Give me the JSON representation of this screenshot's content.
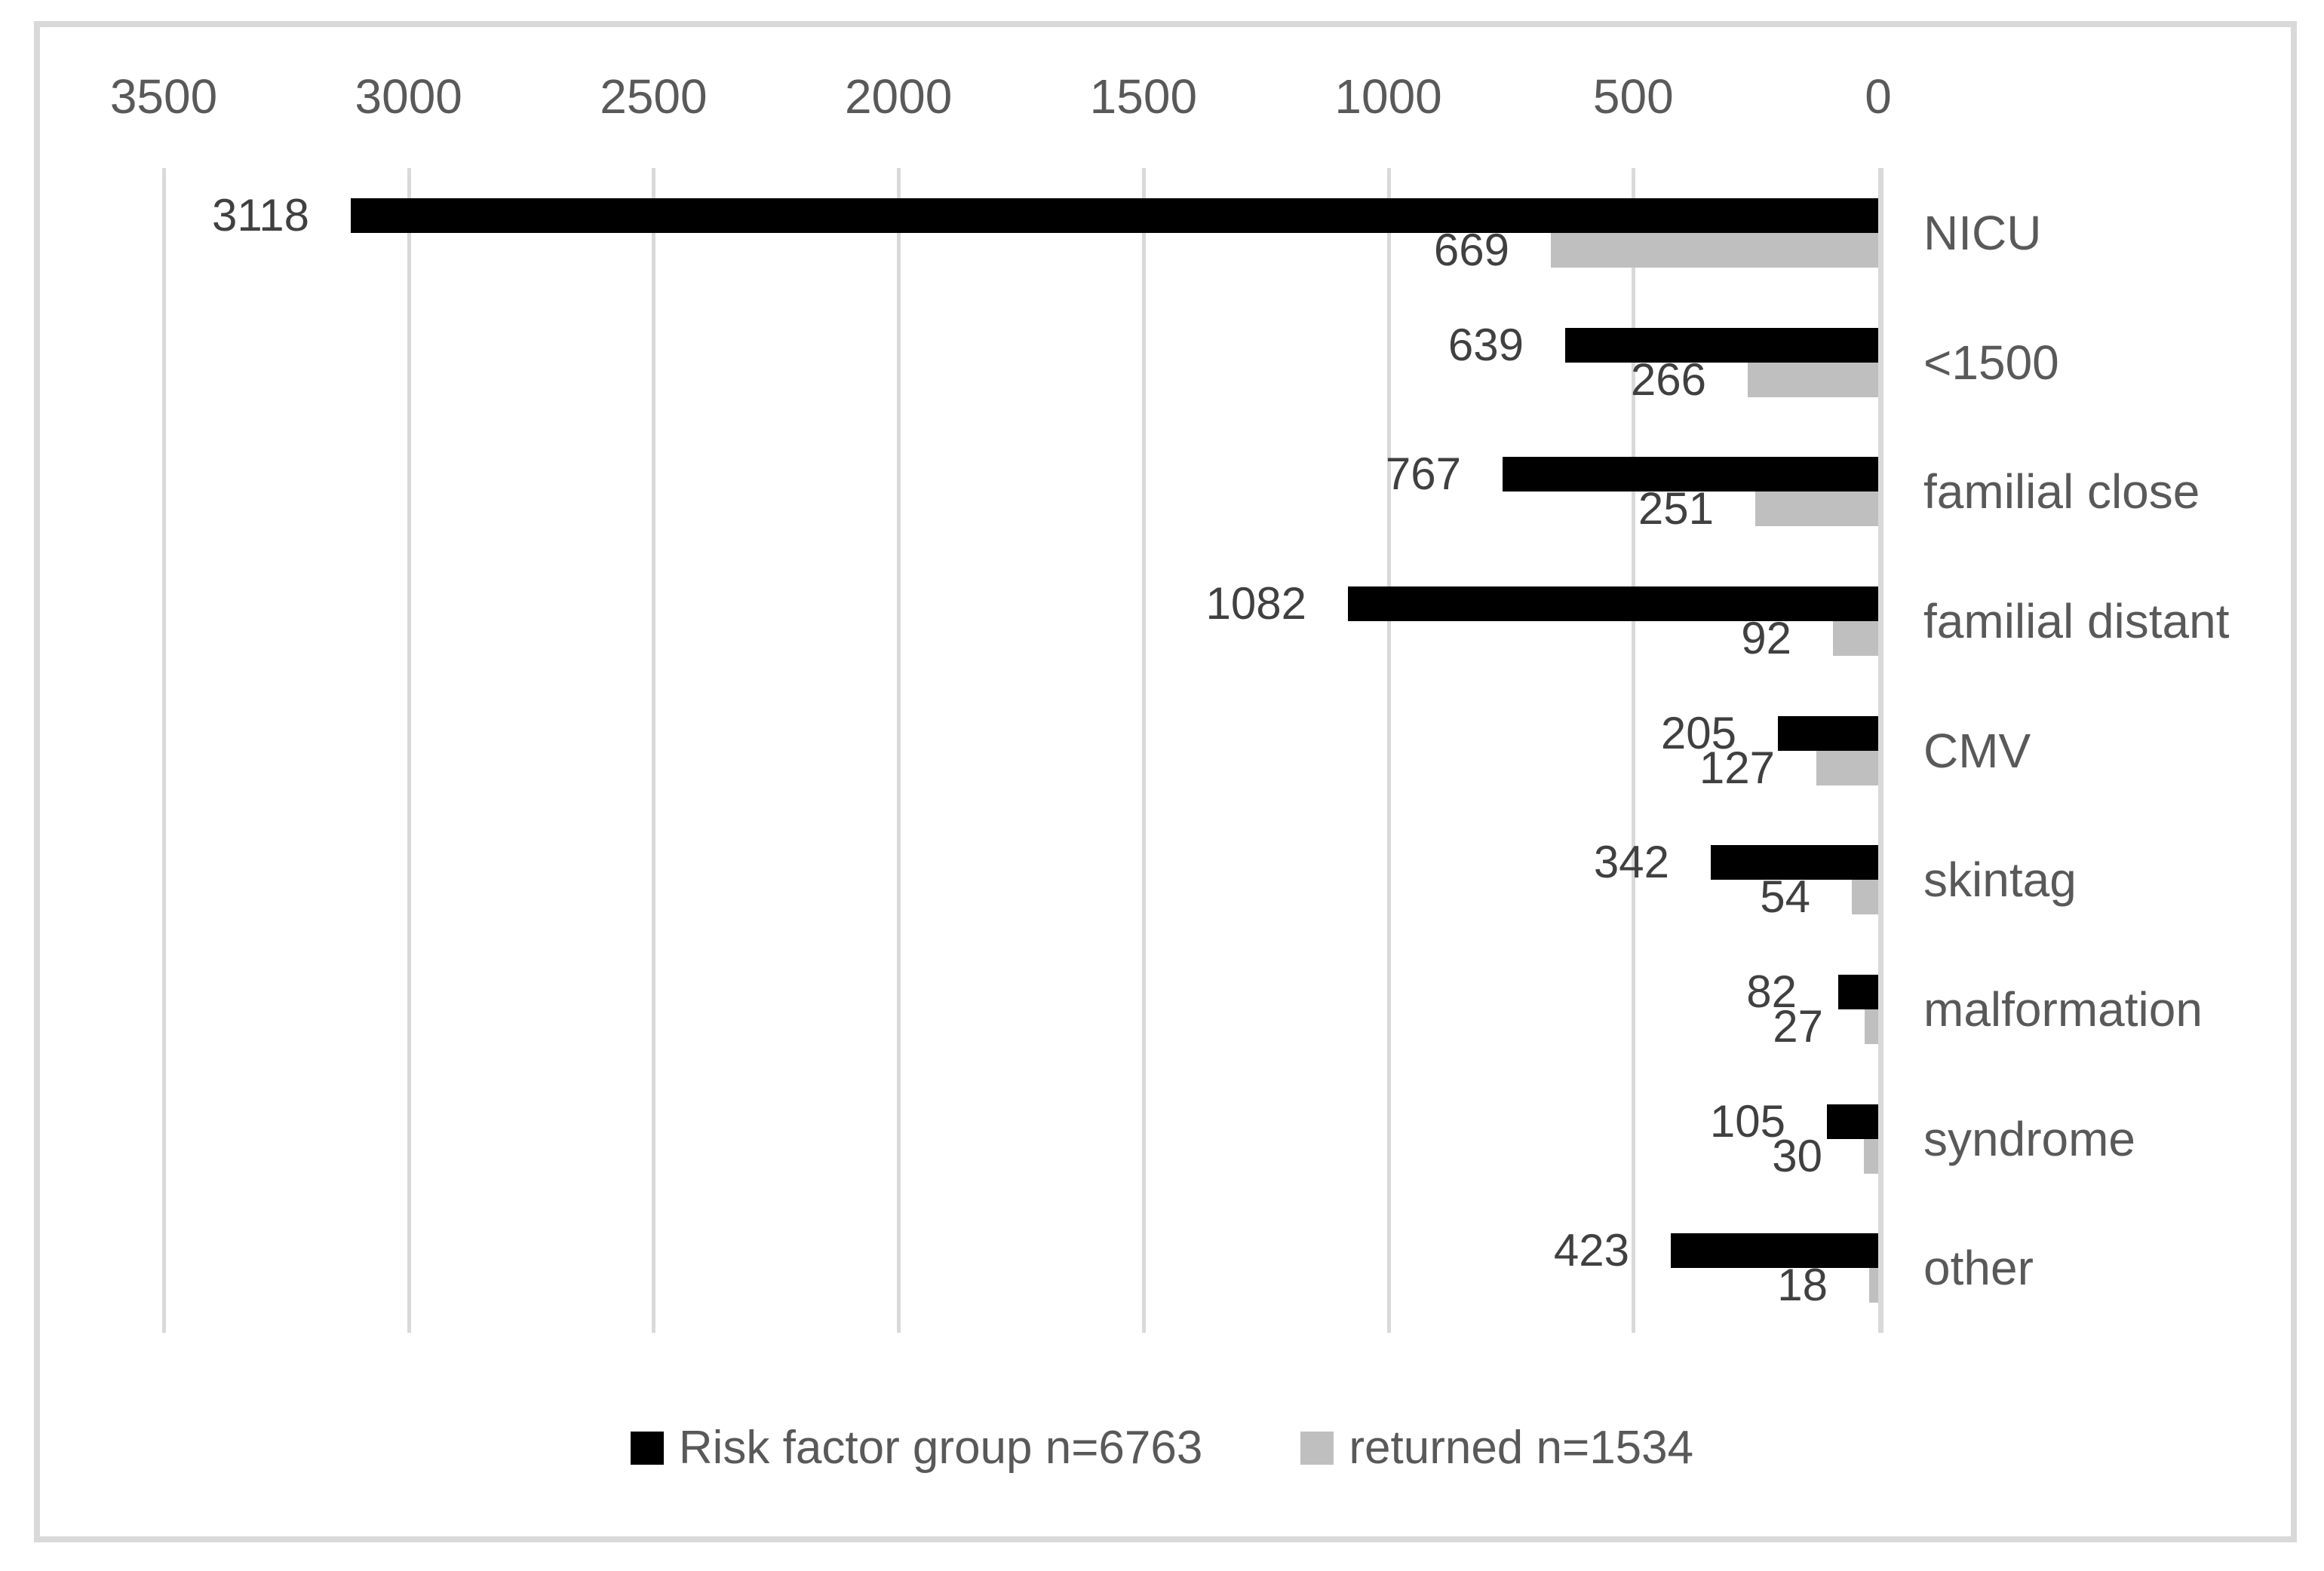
{
  "chart_data": {
    "type": "bar",
    "orientation": "horizontal",
    "title": "",
    "xlabel": "",
    "ylabel": "",
    "x_axis": {
      "position": "top",
      "reversed": true,
      "min": 0,
      "max": 3500,
      "tick_interval": 500,
      "tick_labels": [
        "3500",
        "3000",
        "2500",
        "2000",
        "1500",
        "1000",
        "500",
        "0"
      ],
      "tick_values": [
        3500,
        3000,
        2500,
        2000,
        1500,
        1000,
        500,
        0
      ]
    },
    "categories": [
      "NICU",
      "<1500",
      "familial close",
      "familial distant",
      "CMV",
      "skintag",
      "malformation",
      "syndrome",
      "other"
    ],
    "series": [
      {
        "name": "Risk factor group n=6763",
        "color": "#000000",
        "values": [
          3118,
          639,
          767,
          1082,
          205,
          342,
          82,
          105,
          423
        ],
        "value_labels": [
          "3118",
          "639",
          "767",
          "1082",
          "205",
          "342",
          "82",
          "105",
          "423"
        ]
      },
      {
        "name": "returned n=1534",
        "color": "#bfbfbf",
        "values": [
          669,
          266,
          251,
          92,
          127,
          54,
          27,
          30,
          18
        ],
        "value_labels": [
          "669",
          "266",
          "251",
          "92",
          "127",
          "54",
          "27",
          "30",
          "18"
        ]
      }
    ],
    "legend": {
      "position": "bottom",
      "entries": [
        "Risk factor group n=6763",
        "returned n=1534"
      ]
    },
    "grid": true,
    "data_labels": "outside-end",
    "colors": {
      "bar_black": "#000000",
      "bar_gray": "#bfbfbf",
      "gridline": "#d9d9d9",
      "frame_border": "#d9d9d9",
      "tick_text": "#595959",
      "category_text": "#595959",
      "value_text": "#404040",
      "background": "#ffffff"
    }
  }
}
